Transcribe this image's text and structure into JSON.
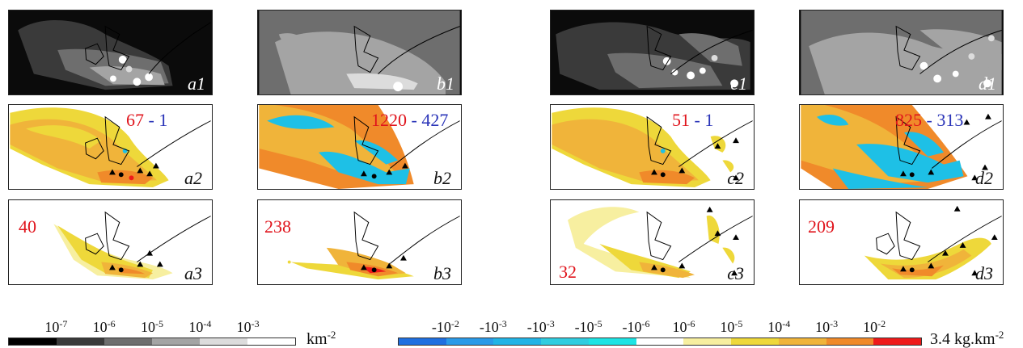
{
  "panels": {
    "a1": {
      "label": "a1"
    },
    "b1": {
      "label": "b1"
    },
    "c1": {
      "label": "c1"
    },
    "d1": {
      "label": "d1"
    },
    "a2": {
      "label": "a2",
      "count_red": "67",
      "separator": " - ",
      "count_blue": "1"
    },
    "b2": {
      "label": "b2",
      "count_red": "1220",
      "separator": " - ",
      "count_blue": "427"
    },
    "c2": {
      "label": "c2",
      "count_red": "51",
      "separator": " - ",
      "count_blue": "1"
    },
    "d2": {
      "label": "d2",
      "count_red": "825",
      "separator": " - ",
      "count_blue": "313"
    },
    "a3": {
      "label": "a3",
      "count_red": "40"
    },
    "b3": {
      "label": "b3",
      "count_red": "238"
    },
    "c3": {
      "label": "c3",
      "count_red": "32"
    },
    "d3": {
      "label": "d3",
      "count_red": "209"
    }
  },
  "legend_gray": {
    "colors": [
      "#000000",
      "#3a3a3a",
      "#6e6e6e",
      "#a4a4a4",
      "#dcdcdc",
      "#ffffff"
    ],
    "ticks": [
      {
        "base": "10",
        "exp": "-7"
      },
      {
        "base": "10",
        "exp": "-6"
      },
      {
        "base": "10",
        "exp": "-5"
      },
      {
        "base": "10",
        "exp": "-4"
      },
      {
        "base": "10",
        "exp": "-3"
      }
    ],
    "unit_base": "km",
    "unit_exp": "-2"
  },
  "legend_color": {
    "colors": [
      "#1f6fe0",
      "#2a9ae8",
      "#22b4e6",
      "#30cde0",
      "#1ee4e4",
      "#ffffff",
      "#f7efa0",
      "#eed83a",
      "#f0b43a",
      "#f08a2a",
      "#ee1a1a"
    ],
    "ticks": [
      {
        "base": "-10",
        "exp": "-2"
      },
      {
        "base": "-10",
        "exp": "-3"
      },
      {
        "base": "-10",
        "exp": "-3"
      },
      {
        "base": "-10",
        "exp": "-5"
      },
      {
        "base": "-10",
        "exp": "-6"
      },
      {
        "base": "10",
        "exp": "-6"
      },
      {
        "base": "10",
        "exp": "-5"
      },
      {
        "base": "10",
        "exp": "-4"
      },
      {
        "base": "10",
        "exp": "-3"
      },
      {
        "base": "10",
        "exp": "-2"
      }
    ],
    "unit_prefix": "3.4 kg.km",
    "unit_exp": "-2"
  },
  "colors": {
    "yellow_light": "#f7efa0",
    "yellow": "#eed83a",
    "orange_light": "#f0b43a",
    "orange": "#f08a2a",
    "red": "#ee1a1a",
    "cyan": "#1ec0e6",
    "count_red": "#e0141c",
    "count_blue": "#2a34b8"
  }
}
